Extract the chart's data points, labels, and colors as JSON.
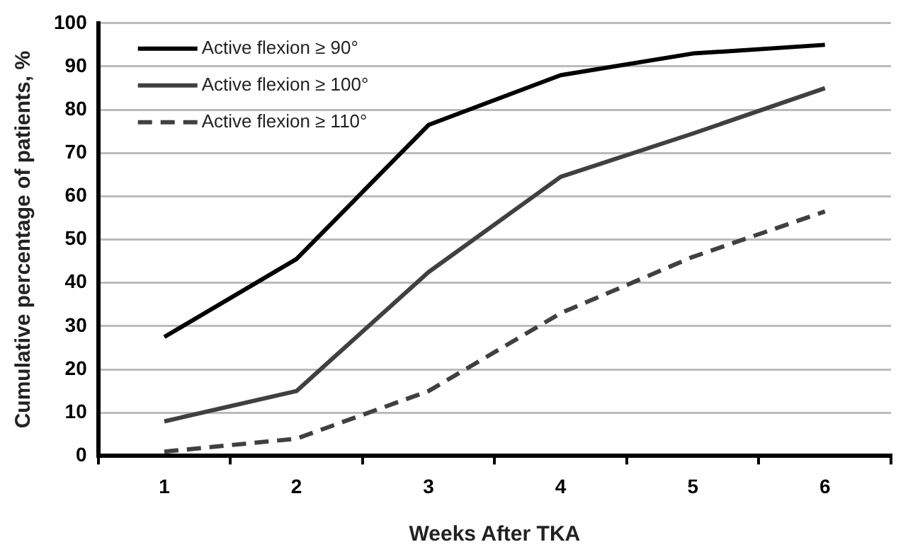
{
  "chart_data": {
    "type": "line",
    "xlabel": "Weeks After TKA",
    "ylabel": "Cumulative percentage of patients, %",
    "categories": [
      "1",
      "2",
      "3",
      "4",
      "5",
      "6"
    ],
    "series": [
      {
        "name": "Active flexion ≥ 90°",
        "color": "#000000",
        "line_style": "solid",
        "values": [
          27.5,
          45.5,
          76.5,
          88,
          93,
          95
        ]
      },
      {
        "name": "Active flexion ≥ 100°",
        "color": "#404040",
        "line_style": "solid",
        "values": [
          8,
          15,
          42.5,
          64.5,
          74.5,
          85
        ]
      },
      {
        "name": "Active flexion ≥ 110°",
        "color": "#404040",
        "line_style": "dashed",
        "values": [
          1,
          4,
          15,
          33,
          46,
          56.5
        ]
      }
    ],
    "ylim": [
      0,
      100
    ],
    "yticks": [
      0,
      10,
      20,
      30,
      40,
      50,
      60,
      70,
      80,
      90,
      100
    ],
    "grid": "y",
    "legend": "top left",
    "marker": "none"
  }
}
